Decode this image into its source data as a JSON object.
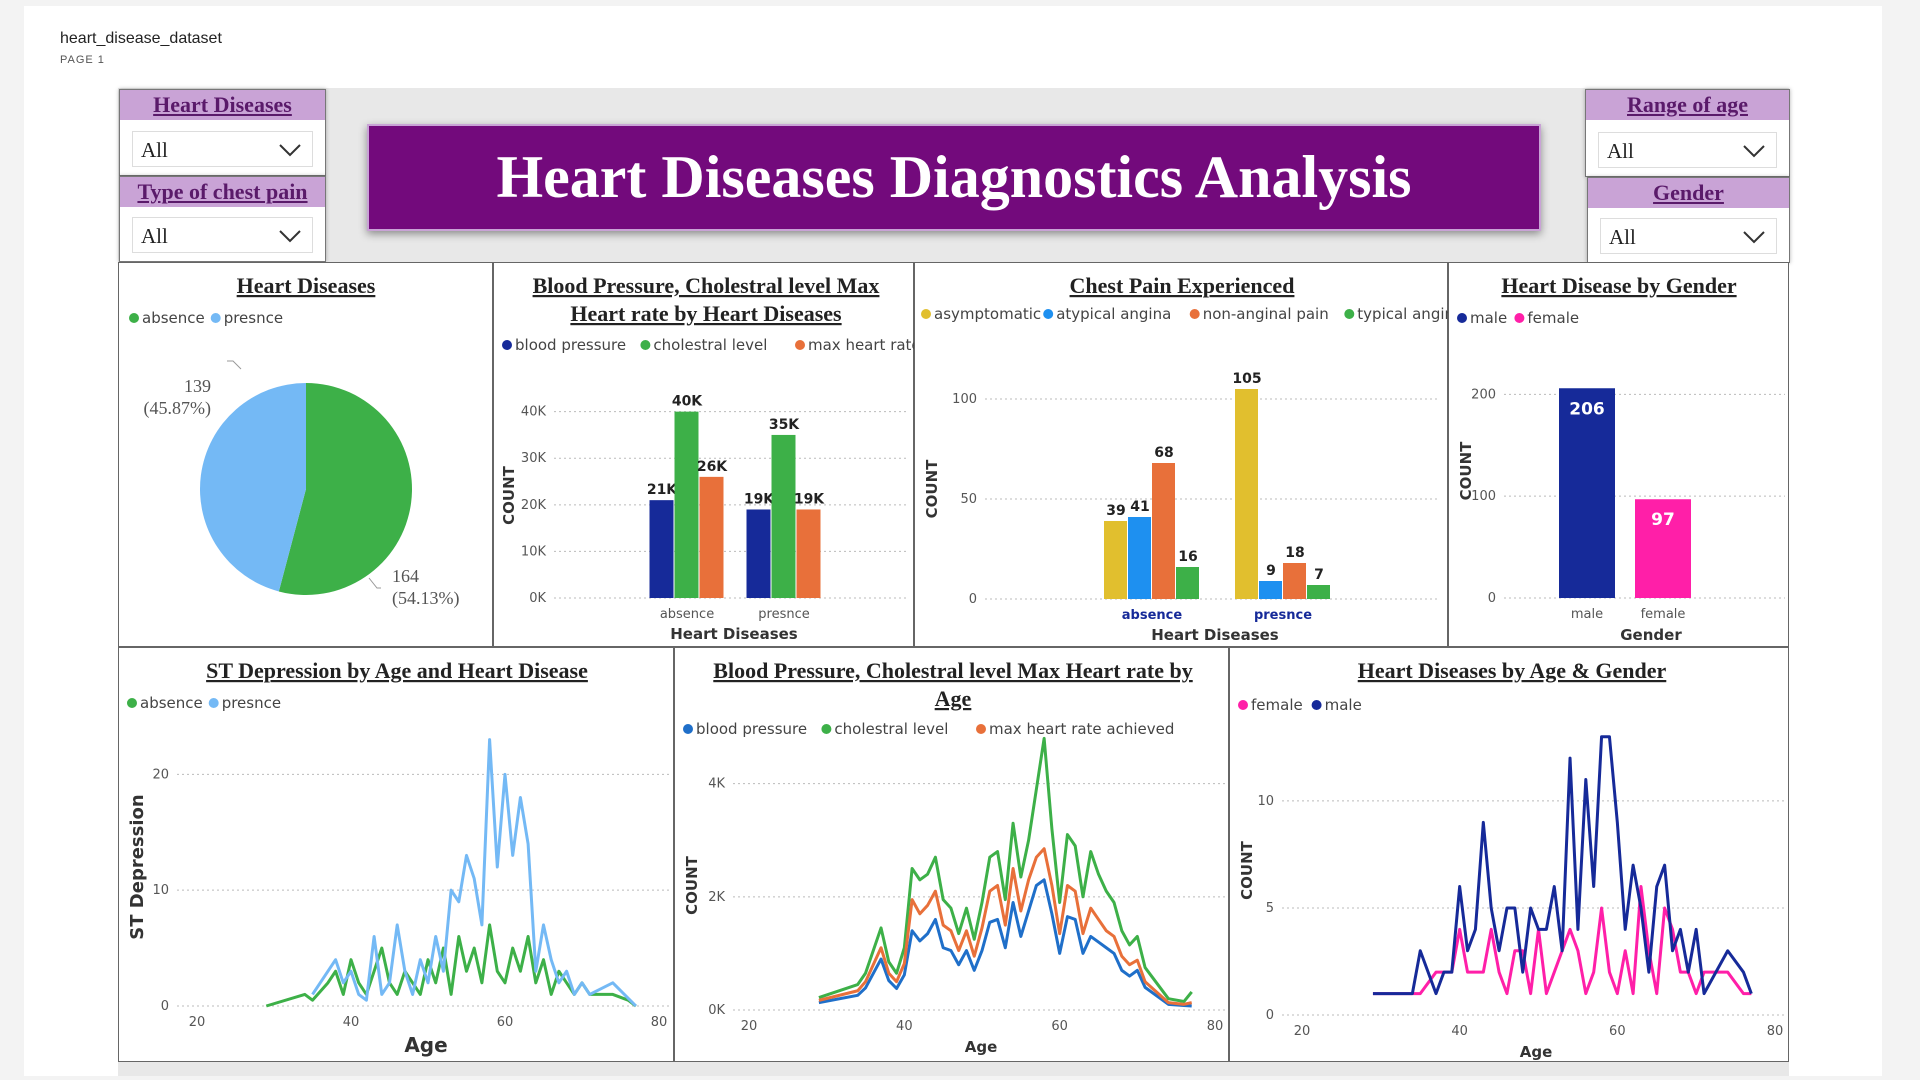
{
  "report": {
    "title": "heart_disease_dataset",
    "page": "PAGE 1"
  },
  "banner": "Heart Diseases Diagnostics Analysis",
  "slicers": {
    "heart_diseases": {
      "label": "Heart Diseases",
      "value": "All"
    },
    "chest_pain": {
      "label": "Type of chest pain",
      "value": "All"
    },
    "age_range": {
      "label": "Range of age",
      "value": "All"
    },
    "gender": {
      "label": "Gender",
      "value": "All"
    }
  },
  "colors": {
    "absence": "#3db048",
    "presnce": "#74b9f5",
    "bp": "#162a99",
    "chol": "#3db048",
    "mhr": "#e8703a",
    "asym": "#e1bf2e",
    "atyp": "#1e90f0",
    "nonang": "#e8703a",
    "typ": "#3db048",
    "male": "#162a99",
    "female": "#ff1fa8",
    "line_blue": "#1f6fc9"
  },
  "chart_data": [
    {
      "id": "pie",
      "type": "pie",
      "title": "Heart Diseases",
      "legend": [
        "absence",
        "presnce"
      ],
      "slices": [
        {
          "name": "absence",
          "value": 164,
          "label": "164",
          "pct": "(54.13%)"
        },
        {
          "name": "presnce",
          "value": 139,
          "label": "139",
          "pct": "(45.87%)"
        }
      ]
    },
    {
      "id": "bp_bar",
      "type": "bar",
      "title": [
        "Blood Pressure, Cholestral level Max",
        "Heart rate by Heart  Diseases"
      ],
      "legend": [
        "blood pressure",
        "cholestral level",
        "max heart rate a..."
      ],
      "categories": [
        "absence",
        "presnce"
      ],
      "series": [
        {
          "name": "blood pressure",
          "values": [
            21000,
            19000
          ],
          "labels": [
            "21K",
            "19K"
          ]
        },
        {
          "name": "cholestral level",
          "values": [
            40000,
            35000
          ],
          "labels": [
            "40K",
            "35K"
          ]
        },
        {
          "name": "max heart rate a...",
          "values": [
            26000,
            19000
          ],
          "labels": [
            "26K",
            "19K"
          ]
        }
      ],
      "xlabel": "Heart Diseases",
      "ylabel": "COUNT",
      "yticks": [
        "0K",
        "10K",
        "20K",
        "30K",
        "40K"
      ],
      "ylim": [
        0,
        44000
      ]
    },
    {
      "id": "chest_bar",
      "type": "bar",
      "title": "Chest Pain Experienced",
      "legend": [
        "asymptomatic",
        "atypical angina",
        "non-anginal pain",
        "typical angina"
      ],
      "categories": [
        "absence",
        "presnce"
      ],
      "series": [
        {
          "name": "asymptomatic",
          "values": [
            39,
            105
          ]
        },
        {
          "name": "atypical angina",
          "values": [
            41,
            9
          ]
        },
        {
          "name": "non-anginal pain",
          "values": [
            68,
            18
          ]
        },
        {
          "name": "typical angina",
          "values": [
            16,
            7
          ]
        }
      ],
      "xlabel": "Heart Diseases",
      "ylabel": "COUNT",
      "yticks": [
        "0",
        "50",
        "100"
      ],
      "ylim": [
        0,
        110
      ]
    },
    {
      "id": "gender_bar",
      "type": "bar",
      "title": "Heart Disease by Gender",
      "legend": [
        "male",
        "female"
      ],
      "categories": [
        "male",
        "female"
      ],
      "values": [
        206,
        97
      ],
      "xlabel": "Gender",
      "ylabel": "COUNT",
      "yticks": [
        "0",
        "100",
        "200"
      ],
      "ylim": [
        0,
        220
      ]
    },
    {
      "id": "st_line",
      "type": "line",
      "title": "ST Depression by Age and Heart  Disease",
      "legend": [
        "absence",
        "presnce"
      ],
      "xlabel": "Age",
      "ylabel": "ST Depression",
      "xticks": [
        "20",
        "40",
        "60",
        "80"
      ],
      "xlim": [
        20,
        80
      ],
      "yticks": [
        "0",
        "10",
        "20"
      ],
      "ylim": [
        0,
        24
      ],
      "series": [
        {
          "name": "absence",
          "x": [
            29,
            34,
            35,
            37,
            38,
            39,
            40,
            41,
            42,
            43,
            44,
            45,
            46,
            47,
            48,
            49,
            50,
            51,
            52,
            53,
            54,
            55,
            56,
            57,
            58,
            59,
            60,
            61,
            62,
            63,
            64,
            65,
            66,
            67,
            68,
            69,
            70,
            71,
            74,
            76,
            77
          ],
          "y": [
            0,
            1,
            0.5,
            2,
            3,
            1,
            4,
            2,
            1,
            3,
            5,
            2,
            1,
            3,
            2,
            1,
            4,
            2,
            5,
            1,
            6,
            3,
            5,
            2,
            7,
            3,
            2,
            5,
            3,
            6,
            2,
            4,
            1,
            3,
            2,
            1,
            2,
            1,
            1,
            0.5,
            0
          ]
        },
        {
          "name": "presnce",
          "x": [
            35,
            38,
            39,
            40,
            41,
            42,
            43,
            44,
            45,
            46,
            47,
            48,
            49,
            50,
            51,
            52,
            53,
            54,
            55,
            56,
            57,
            58,
            59,
            60,
            61,
            62,
            63,
            64,
            65,
            66,
            67,
            68,
            69,
            70,
            71,
            74,
            77
          ],
          "y": [
            1,
            4,
            2,
            3,
            1,
            0.5,
            6,
            1,
            2,
            7,
            3,
            1,
            4,
            2,
            6,
            3,
            10,
            9,
            13,
            11,
            7,
            23,
            12,
            20,
            13,
            18,
            14,
            3,
            7,
            4,
            2,
            3,
            1,
            2,
            1,
            2,
            0
          ]
        }
      ]
    },
    {
      "id": "age_line",
      "type": "line",
      "title": [
        "Blood Pressure, Cholestral level Max Heart rate by",
        "Age"
      ],
      "legend": [
        "blood pressure",
        "cholestral level",
        "max heart rate achieved"
      ],
      "xlabel": "Age",
      "ylabel": "COUNT",
      "xticks": [
        "20",
        "40",
        "60",
        "80"
      ],
      "xlim": [
        20,
        80
      ],
      "yticks": [
        "0K",
        "2K",
        "4K"
      ],
      "ylim": [
        0,
        4400
      ],
      "x": [
        29,
        34,
        35,
        37,
        38,
        39,
        40,
        41,
        42,
        43,
        44,
        45,
        46,
        47,
        48,
        49,
        50,
        51,
        52,
        53,
        54,
        55,
        56,
        57,
        58,
        59,
        60,
        61,
        62,
        63,
        64,
        65,
        66,
        67,
        68,
        69,
        70,
        71,
        74,
        76,
        77
      ],
      "series": [
        {
          "name": "blood pressure",
          "y": [
            130,
            260,
            390,
            900,
            520,
            380,
            620,
            1400,
            1220,
            1350,
            1600,
            1100,
            1050,
            800,
            1050,
            700,
            1050,
            1550,
            1600,
            1100,
            1900,
            1300,
            1750,
            2200,
            2300,
            1700,
            1000,
            1650,
            1600,
            1000,
            1300,
            1200,
            1100,
            1000,
            700,
            600,
            700,
            400,
            100,
            80,
            70
          ]
        },
        {
          "name": "cholestral level",
          "y": [
            220,
            450,
            650,
            1450,
            850,
            650,
            1100,
            2500,
            2300,
            2400,
            2700,
            1950,
            1800,
            1350,
            1800,
            1250,
            1900,
            2700,
            2800,
            1950,
            3300,
            2350,
            3000,
            3900,
            4800,
            3200,
            1900,
            3100,
            2900,
            2000,
            2800,
            2400,
            2100,
            1900,
            1400,
            1150,
            1300,
            750,
            200,
            150,
            320
          ]
        },
        {
          "name": "max heart rate achieved",
          "y": [
            170,
            340,
            500,
            1100,
            650,
            500,
            820,
            1950,
            1700,
            1850,
            2100,
            1500,
            1400,
            1050,
            1400,
            950,
            1450,
            2100,
            2200,
            1500,
            2500,
            1750,
            2300,
            2700,
            2850,
            2200,
            1350,
            2200,
            2100,
            1350,
            1800,
            1600,
            1400,
            1300,
            950,
            800,
            880,
            500,
            130,
            100,
            130
          ]
        }
      ]
    },
    {
      "id": "agegender_line",
      "type": "line",
      "title": "Heart Diseases by Age & Gender",
      "legend": [
        "female",
        "male"
      ],
      "xlabel": "Age",
      "ylabel": "COUNT",
      "xticks": [
        "20",
        "40",
        "60",
        "80"
      ],
      "xlim": [
        20,
        80
      ],
      "yticks": [
        "0",
        "5",
        "10"
      ],
      "ylim": [
        0,
        13.5
      ],
      "series": [
        {
          "name": "female",
          "x": [
            29,
            34,
            35,
            37,
            38,
            39,
            40,
            41,
            42,
            43,
            44,
            45,
            46,
            47,
            48,
            49,
            50,
            51,
            52,
            53,
            54,
            55,
            56,
            57,
            58,
            59,
            60,
            61,
            62,
            63,
            64,
            65,
            66,
            67,
            68,
            69,
            70,
            71,
            74,
            76,
            77
          ],
          "y": [
            1,
            1,
            1,
            2,
            2,
            2,
            4,
            2,
            2,
            2,
            4,
            2,
            1,
            3,
            3,
            1,
            4,
            1,
            2,
            3,
            4,
            3,
            1,
            2,
            5,
            2,
            1,
            3,
            1,
            6,
            3,
            1,
            5,
            4,
            2,
            2,
            1,
            2,
            2,
            1,
            1
          ]
        },
        {
          "name": "male",
          "x": [
            29,
            34,
            35,
            37,
            38,
            39,
            40,
            41,
            42,
            43,
            44,
            45,
            46,
            47,
            48,
            49,
            50,
            51,
            52,
            53,
            54,
            55,
            56,
            57,
            58,
            59,
            60,
            61,
            62,
            63,
            64,
            65,
            66,
            67,
            68,
            69,
            70,
            71,
            74,
            76,
            77
          ],
          "y": [
            1,
            1,
            3,
            1,
            2,
            2,
            6,
            3,
            4,
            9,
            5,
            3,
            5,
            5,
            2,
            5,
            4,
            4,
            6,
            3,
            12,
            4,
            11,
            6,
            13,
            13,
            9,
            4,
            7,
            5,
            2,
            6,
            7,
            3,
            4,
            2,
            4,
            1,
            3,
            2,
            1
          ]
        }
      ]
    }
  ]
}
